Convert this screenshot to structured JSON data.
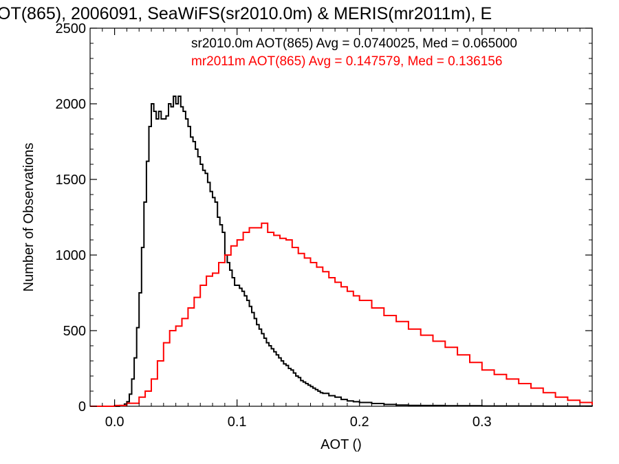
{
  "chart_data": {
    "type": "line",
    "step": true,
    "title": "OT(865), 2006091, SeaWiFS(sr2010.0m) & MERIS(mr2011m), E",
    "xlabel": "AOT ()",
    "ylabel": "Number of Observations",
    "xlim": [
      -0.02,
      0.39
    ],
    "ylim": [
      0,
      2500
    ],
    "xticks": [
      0.0,
      0.1,
      0.2,
      0.3
    ],
    "xtick_labels": [
      "0.0",
      "0.1",
      "0.2",
      "0.3"
    ],
    "yticks": [
      0,
      500,
      1000,
      1500,
      2000,
      2500
    ],
    "ytick_labels": [
      "0",
      "500",
      "1000",
      "1500",
      "2000",
      "2500"
    ],
    "grid": false,
    "legend_placement": "top-right",
    "annotations": [
      {
        "text": "sr2010.0m AOT(865) Avg = 0.0740025, Med = 0.065000",
        "color": "#000000"
      },
      {
        "text": "mr2011m AOT(865) Avg = 0.147579, Med = 0.136156",
        "color": "#ff0000"
      }
    ],
    "series": [
      {
        "color": "#000000",
        "x": [
          -0.02,
          -0.015,
          -0.01,
          -0.005,
          0.0,
          0.004,
          0.008,
          0.01,
          0.012,
          0.014,
          0.016,
          0.018,
          0.02,
          0.022,
          0.024,
          0.026,
          0.028,
          0.03,
          0.032,
          0.034,
          0.036,
          0.038,
          0.04,
          0.042,
          0.044,
          0.046,
          0.048,
          0.05,
          0.052,
          0.054,
          0.056,
          0.058,
          0.06,
          0.062,
          0.064,
          0.066,
          0.068,
          0.07,
          0.072,
          0.074,
          0.076,
          0.078,
          0.08,
          0.082,
          0.084,
          0.086,
          0.088,
          0.09,
          0.092,
          0.094,
          0.096,
          0.098,
          0.1,
          0.102,
          0.104,
          0.106,
          0.108,
          0.11,
          0.112,
          0.114,
          0.116,
          0.118,
          0.12,
          0.122,
          0.124,
          0.126,
          0.128,
          0.13,
          0.132,
          0.134,
          0.136,
          0.138,
          0.14,
          0.142,
          0.144,
          0.146,
          0.148,
          0.15,
          0.152,
          0.154,
          0.156,
          0.158,
          0.16,
          0.162,
          0.164,
          0.166,
          0.168,
          0.17,
          0.175,
          0.18,
          0.185,
          0.19,
          0.195,
          0.2,
          0.21,
          0.22,
          0.23,
          0.24,
          0.25,
          0.27,
          0.3,
          0.35,
          0.39
        ],
        "y": [
          0,
          0,
          0,
          0,
          0,
          5,
          15,
          30,
          80,
          180,
          320,
          520,
          750,
          1050,
          1350,
          1620,
          1850,
          2000,
          1950,
          1900,
          1950,
          1900,
          1900,
          1920,
          2000,
          1980,
          2050,
          2000,
          2050,
          1980,
          1950,
          1900,
          1850,
          1780,
          1750,
          1700,
          1650,
          1600,
          1560,
          1540,
          1480,
          1420,
          1380,
          1350,
          1250,
          1200,
          1150,
          1000,
          950,
          900,
          850,
          800,
          800,
          780,
          760,
          730,
          700,
          660,
          620,
          580,
          540,
          510,
          480,
          450,
          420,
          400,
          380,
          360,
          340,
          320,
          300,
          280,
          270,
          250,
          240,
          220,
          200,
          190,
          170,
          160,
          150,
          140,
          130,
          120,
          110,
          100,
          90,
          85,
          70,
          60,
          45,
          35,
          30,
          25,
          18,
          12,
          8,
          6,
          5,
          3,
          2,
          1,
          0
        ]
      },
      {
        "color": "#ff0000",
        "x": [
          -0.02,
          -0.01,
          0.0,
          0.01,
          0.02,
          0.025,
          0.03,
          0.035,
          0.04,
          0.045,
          0.05,
          0.055,
          0.06,
          0.065,
          0.07,
          0.075,
          0.08,
          0.085,
          0.09,
          0.095,
          0.1,
          0.105,
          0.11,
          0.115,
          0.12,
          0.125,
          0.13,
          0.135,
          0.14,
          0.145,
          0.15,
          0.155,
          0.16,
          0.165,
          0.17,
          0.175,
          0.18,
          0.185,
          0.19,
          0.195,
          0.2,
          0.21,
          0.22,
          0.23,
          0.24,
          0.25,
          0.26,
          0.27,
          0.28,
          0.29,
          0.3,
          0.31,
          0.32,
          0.33,
          0.34,
          0.35,
          0.36,
          0.37,
          0.38,
          0.39
        ],
        "y": [
          0,
          0,
          5,
          20,
          60,
          100,
          180,
          300,
          420,
          500,
          530,
          580,
          650,
          720,
          800,
          860,
          880,
          950,
          1000,
          1060,
          1100,
          1150,
          1180,
          1180,
          1210,
          1150,
          1130,
          1110,
          1100,
          1050,
          1010,
          980,
          950,
          920,
          890,
          850,
          820,
          790,
          760,
          730,
          700,
          650,
          600,
          560,
          510,
          470,
          430,
          390,
          340,
          290,
          240,
          210,
          180,
          150,
          120,
          90,
          60,
          40,
          25,
          10
        ]
      }
    ]
  }
}
